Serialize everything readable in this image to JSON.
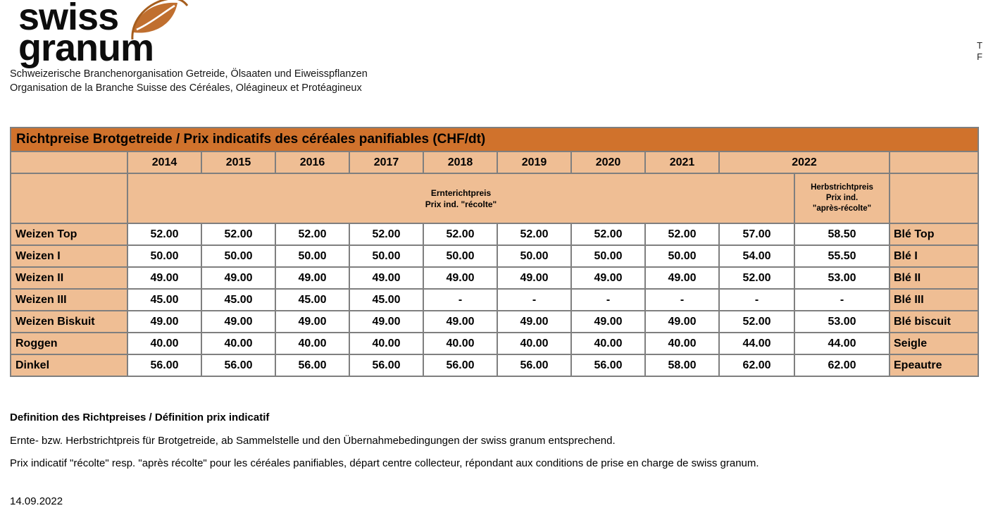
{
  "logo": {
    "brand_line1": "swiss",
    "brand_line2": "granum",
    "subtitle_de": "Schweizerische Branchenorganisation Getreide, Ölsaaten und Eiweisspflanzen",
    "subtitle_fr": "Organisation de la Branche Suisse des Céréales, Oléagineux et Protéagineux"
  },
  "contact_fragment": {
    "line1": "T",
    "line2": "F"
  },
  "table": {
    "title": "Richtpreise Brotgetreide / Prix indicatifs des céréales panifiables (CHF/dt)",
    "years": [
      "2014",
      "2015",
      "2016",
      "2017",
      "2018",
      "2019",
      "2020",
      "2021"
    ],
    "year_2022": "2022",
    "harvest_header_lines": [
      "Ernterichtpreis",
      "Prix ind. \"récolte\""
    ],
    "autumn_header_lines": [
      "Herbstrichtpreis",
      "Prix ind.",
      "\"après-récolte\""
    ],
    "rows": [
      {
        "label_de": "Weizen Top",
        "values": [
          "52.00",
          "52.00",
          "52.00",
          "52.00",
          "52.00",
          "52.00",
          "52.00",
          "52.00",
          "57.00",
          "58.50"
        ],
        "label_fr": "Blé Top"
      },
      {
        "label_de": "Weizen I",
        "values": [
          "50.00",
          "50.00",
          "50.00",
          "50.00",
          "50.00",
          "50.00",
          "50.00",
          "50.00",
          "54.00",
          "55.50"
        ],
        "label_fr": "Blé I"
      },
      {
        "label_de": "Weizen II",
        "values": [
          "49.00",
          "49.00",
          "49.00",
          "49.00",
          "49.00",
          "49.00",
          "49.00",
          "49.00",
          "52.00",
          "53.00"
        ],
        "label_fr": "Blé II"
      },
      {
        "label_de": "Weizen III",
        "values": [
          "45.00",
          "45.00",
          "45.00",
          "45.00",
          "-",
          "-",
          "-",
          "-",
          "-",
          "-"
        ],
        "label_fr": "Blé III"
      },
      {
        "label_de": "Weizen Biskuit",
        "values": [
          "49.00",
          "49.00",
          "49.00",
          "49.00",
          "49.00",
          "49.00",
          "49.00",
          "49.00",
          "52.00",
          "53.00"
        ],
        "label_fr": "Blé biscuit"
      },
      {
        "label_de": "Roggen",
        "values": [
          "40.00",
          "40.00",
          "40.00",
          "40.00",
          "40.00",
          "40.00",
          "40.00",
          "40.00",
          "44.00",
          "44.00"
        ],
        "label_fr": "Seigle"
      },
      {
        "label_de": "Dinkel",
        "values": [
          "56.00",
          "56.00",
          "56.00",
          "56.00",
          "56.00",
          "56.00",
          "56.00",
          "58.00",
          "62.00",
          "62.00"
        ],
        "label_fr": "Epeautre"
      }
    ]
  },
  "definition": {
    "heading": "Definition des Richtpreises / Définition prix indicatif",
    "text_de": "Ernte- bzw. Herbstrichtpreis für Brotgetreide, ab Sammelstelle und den Übernahmebedingungen der swiss granum entsprechend.",
    "text_fr": "Prix indicatif \"récolte\" resp. \"après récolte\" pour les céréales panifiables, départ centre collecteur, répondant aux conditions de prise en charge de swiss granum."
  },
  "doc_date": "14.09.2022",
  "colors": {
    "header_orange": "#d0722c",
    "cell_peach": "#efbe94",
    "border_gray": "#7f7f7f",
    "grain_orange": "#c06f2f"
  }
}
